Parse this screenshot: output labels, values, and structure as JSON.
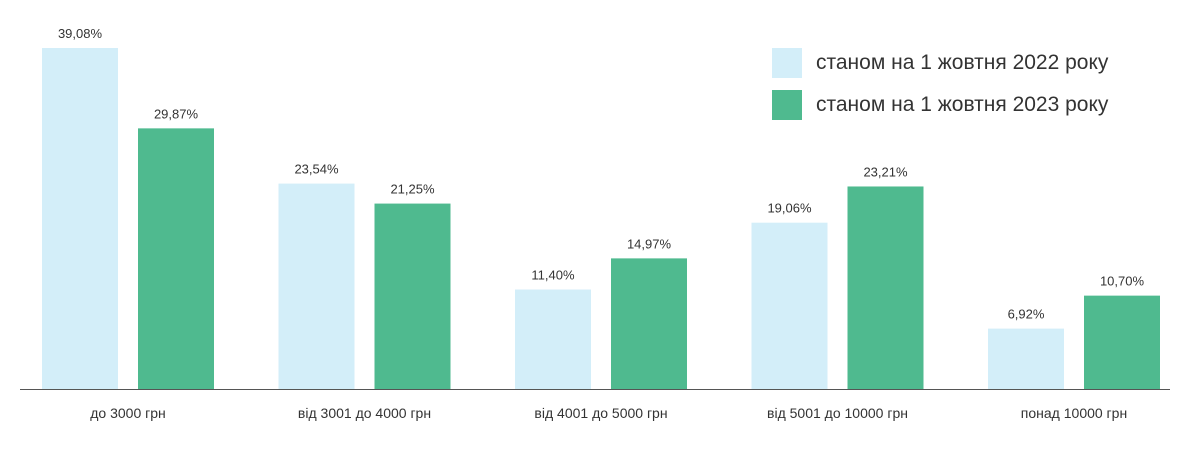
{
  "chart_data": {
    "type": "bar",
    "categories": [
      "до 3000 грн",
      "від 3001 до 4000 грн",
      "від 4001 до 5000 грн",
      "від 5001 до 10000 грн",
      "понад 10000 грн"
    ],
    "series": [
      {
        "name": "станом на 1 жовтня 2022 року",
        "values": [
          39.08,
          23.54,
          11.4,
          19.06,
          6.92
        ],
        "labels": [
          "39,08%",
          "23,54%",
          "11,40%",
          "19,06%",
          "6,92%"
        ],
        "color": "#d3eef9"
      },
      {
        "name": "станом на 1 жовтня 2023 року",
        "values": [
          29.87,
          21.25,
          14.97,
          23.21,
          10.7
        ],
        "labels": [
          "29,87%",
          "21,25%",
          "14,97%",
          "23,21%",
          "10,70%"
        ],
        "color": "#4fba8f"
      }
    ],
    "ylim": [
      0,
      39.08
    ],
    "legend_position": "top-right",
    "axis_color": "#555555",
    "grid": false
  }
}
